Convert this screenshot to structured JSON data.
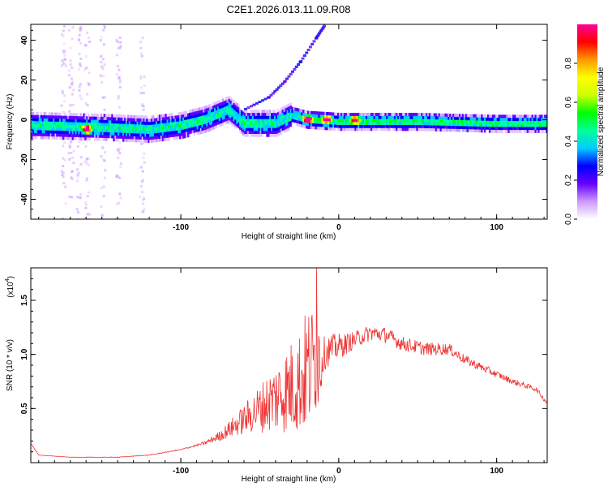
{
  "title": "C2E1.2026.013.11.09.R08",
  "chart_data": [
    {
      "type": "heatmap",
      "name": "spectrogram",
      "xlabel": "Height of straight line (km)",
      "ylabel": "Frequency (Hz)",
      "xlim": [
        -195,
        132
      ],
      "ylim": [
        -50,
        48
      ],
      "xticks": [
        -100,
        0,
        100
      ],
      "xtick_labels": [
        "-100",
        "0",
        "100"
      ],
      "yticks": [
        -40,
        -20,
        0,
        20,
        40
      ],
      "ytick_labels": [
        "-40",
        "-20",
        "0",
        "20",
        "40"
      ],
      "colorbar": {
        "label": "Normalized spectral amplitude",
        "range": [
          0.0,
          1.0
        ],
        "ticks": [
          0.0,
          0.2,
          0.4,
          0.6,
          0.8
        ],
        "tick_labels": [
          "0.0",
          "0.2",
          "0.4",
          "0.6",
          "0.8"
        ],
        "colors": [
          "#ffffff",
          "#cc99ff",
          "#6600ff",
          "#0000ff",
          "#00ccff",
          "#00ff99",
          "#00ff00",
          "#ccff00",
          "#ffff00",
          "#ff9900",
          "#ff0000",
          "#ff0099"
        ]
      },
      "trace": [
        {
          "x": -195,
          "y": -3
        },
        {
          "x": -150,
          "y": -4
        },
        {
          "x": -120,
          "y": -5
        },
        {
          "x": -100,
          "y": -3
        },
        {
          "x": -85,
          "y": 0
        },
        {
          "x": -70,
          "y": 5
        },
        {
          "x": -60,
          "y": -2
        },
        {
          "x": -40,
          "y": -2
        },
        {
          "x": -30,
          "y": 2
        },
        {
          "x": -20,
          "y": 0
        },
        {
          "x": 0,
          "y": -1
        },
        {
          "x": 50,
          "y": -1
        },
        {
          "x": 100,
          "y": -2
        },
        {
          "x": 132,
          "y": -2
        }
      ],
      "arc": [
        {
          "x": -60,
          "y": 6
        },
        {
          "x": -45,
          "y": 12
        },
        {
          "x": -35,
          "y": 20
        },
        {
          "x": -25,
          "y": 30
        },
        {
          "x": -15,
          "y": 42
        },
        {
          "x": -10,
          "y": 48
        }
      ],
      "peaks": [
        {
          "x": -160,
          "y": -5,
          "v": 0.85
        },
        {
          "x": -20,
          "y": 0,
          "v": 0.95
        },
        {
          "x": -8,
          "y": 0,
          "v": 0.95
        },
        {
          "x": 10,
          "y": 0,
          "v": 0.7
        }
      ]
    },
    {
      "type": "line",
      "name": "snr",
      "xlabel": "Height of straight line (km)",
      "ylabel": "SNR (10 * v/v)",
      "y_multiplier_label": "(x10",
      "y_multiplier_exp": "4",
      "color": "#ee3333",
      "xlim": [
        -195,
        132
      ],
      "ylim": [
        0,
        1.8
      ],
      "xticks": [
        -100,
        0,
        100
      ],
      "xtick_labels": [
        "-100",
        "0",
        "100"
      ],
      "yticks": [
        0.5,
        1.0,
        1.5
      ],
      "ytick_labels": [
        "0.5",
        "1.0",
        "1.5"
      ],
      "envelope": [
        {
          "x": -195,
          "y": 0.18
        },
        {
          "x": -190,
          "y": 0.07
        },
        {
          "x": -170,
          "y": 0.05
        },
        {
          "x": -140,
          "y": 0.05
        },
        {
          "x": -120,
          "y": 0.07
        },
        {
          "x": -100,
          "y": 0.12
        },
        {
          "x": -85,
          "y": 0.18
        },
        {
          "x": -75,
          "y": 0.25
        },
        {
          "x": -65,
          "y": 0.35
        },
        {
          "x": -55,
          "y": 0.45
        },
        {
          "x": -45,
          "y": 0.55
        },
        {
          "x": -35,
          "y": 0.65
        },
        {
          "x": -25,
          "y": 0.75
        },
        {
          "x": -15,
          "y": 0.95
        },
        {
          "x": -5,
          "y": 1.05
        },
        {
          "x": 5,
          "y": 1.1
        },
        {
          "x": 20,
          "y": 1.2
        },
        {
          "x": 30,
          "y": 1.18
        },
        {
          "x": 40,
          "y": 1.1
        },
        {
          "x": 55,
          "y": 1.05
        },
        {
          "x": 70,
          "y": 1.05
        },
        {
          "x": 80,
          "y": 0.95
        },
        {
          "x": 95,
          "y": 0.85
        },
        {
          "x": 110,
          "y": 0.75
        },
        {
          "x": 125,
          "y": 0.68
        },
        {
          "x": 132,
          "y": 0.55
        }
      ],
      "noise_profile": [
        {
          "x": -195,
          "a": 0.02
        },
        {
          "x": -90,
          "a": 0.05
        },
        {
          "x": -70,
          "a": 0.25
        },
        {
          "x": -40,
          "a": 0.55
        },
        {
          "x": -20,
          "a": 0.7
        },
        {
          "x": -10,
          "a": 0.4
        },
        {
          "x": 10,
          "a": 0.2
        },
        {
          "x": 60,
          "a": 0.15
        },
        {
          "x": 100,
          "a": 0.08
        },
        {
          "x": 132,
          "a": 0.05
        }
      ],
      "max_point": {
        "x": -14,
        "y": 1.8
      }
    }
  ]
}
